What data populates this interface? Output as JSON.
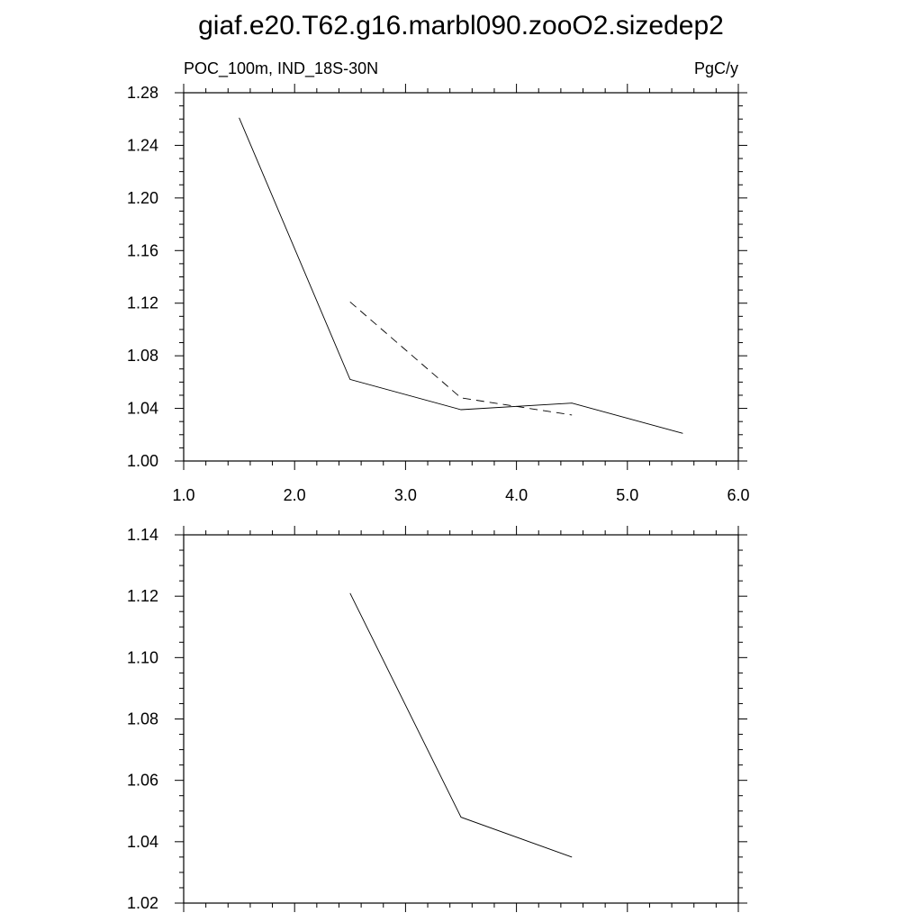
{
  "figure_title": "giaf.e20.T62.g16.marbl090.zooO2.sizedep2",
  "chart_data": [
    {
      "type": "line",
      "title": "",
      "left_label": "POC_100m, IND_18S-30N",
      "right_label": "PgC/y",
      "xlim": [
        1.0,
        6.0
      ],
      "ylim": [
        1.0,
        1.28
      ],
      "x_ticks": [
        1.0,
        2.0,
        3.0,
        4.0,
        5.0,
        6.0
      ],
      "x_tick_labels": [
        "1.0",
        "2.0",
        "3.0",
        "4.0",
        "5.0",
        "6.0"
      ],
      "y_ticks": [
        1.0,
        1.04,
        1.08,
        1.12,
        1.16,
        1.2,
        1.24,
        1.28
      ],
      "y_tick_labels": [
        "1.00",
        "1.04",
        "1.08",
        "1.12",
        "1.16",
        "1.20",
        "1.24",
        "1.28"
      ],
      "grid": false,
      "series": [
        {
          "style": "solid",
          "x": [
            1.5,
            2.5,
            3.5,
            4.5,
            5.5
          ],
          "y": [
            1.261,
            1.062,
            1.039,
            1.044,
            1.021
          ]
        },
        {
          "style": "dashed",
          "x": [
            2.5,
            3.5,
            4.5
          ],
          "y": [
            1.121,
            1.048,
            1.035
          ]
        }
      ]
    },
    {
      "type": "line",
      "title": "",
      "xlim": [
        1.0,
        6.0
      ],
      "ylim": [
        1.02,
        1.14
      ],
      "x_ticks": [
        1.0,
        2.0,
        3.0,
        4.0,
        5.0,
        6.0
      ],
      "y_ticks": [
        1.02,
        1.04,
        1.06,
        1.08,
        1.1,
        1.12,
        1.14
      ],
      "y_tick_labels": [
        "1.02",
        "1.04",
        "1.06",
        "1.08",
        "1.10",
        "1.12",
        "1.14"
      ],
      "grid": false,
      "series": [
        {
          "style": "solid",
          "x": [
            2.5,
            3.5,
            4.5
          ],
          "y": [
            1.121,
            1.048,
            1.035
          ]
        }
      ]
    }
  ]
}
